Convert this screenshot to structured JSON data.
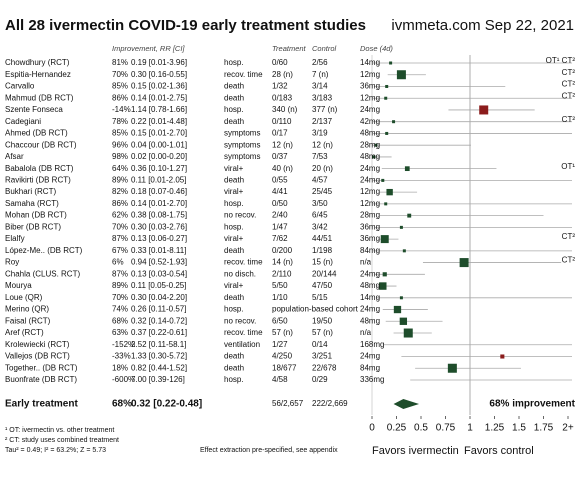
{
  "chart_data": {
    "type": "forest",
    "title": "All 28 ivermectin COVID-19 early treatment studies",
    "source": "ivmmeta.com Sep 22, 2021",
    "headers": {
      "improvement": "Improvement, RR [CI]",
      "treatment": "Treatment",
      "control": "Control",
      "dose": "Dose (4d)"
    },
    "colors": {
      "benefit": "#1e4d2b",
      "harm": "#8b1c1c",
      "good_text": "#2e8b2e",
      "bad_text": "#c0392b"
    },
    "rows": [
      {
        "study": "Chowdhury (RCT)",
        "improvement": "81%",
        "effect": "0.19 [0.01-3.96]",
        "rr": 0.19,
        "lo": 0.01,
        "hi": 3.96,
        "outcome": "hosp.",
        "treatment": "0/60",
        "control": "2/56",
        "dose": "14mg",
        "notes": "OT¹ CT²"
      },
      {
        "study": "Espitia-Hernandez",
        "improvement": "70%",
        "effect": "0.30 [0.16-0.55]",
        "rr": 0.3,
        "lo": 0.16,
        "hi": 0.55,
        "outcome": "recov. time",
        "treatment": "28 (n)",
        "control": "7 (n)",
        "dose": "12mg",
        "notes": "CT²"
      },
      {
        "study": "Carvallo",
        "improvement": "85%",
        "effect": "0.15 [0.02-1.36]",
        "rr": 0.15,
        "lo": 0.02,
        "hi": 1.36,
        "outcome": "death",
        "treatment": "1/32",
        "control": "3/14",
        "dose": "36mg",
        "notes": "CT²"
      },
      {
        "study": "Mahmud (DB RCT)",
        "improvement": "86%",
        "effect": "0.14 [0.01-2.75]",
        "rr": 0.14,
        "lo": 0.01,
        "hi": 2.75,
        "outcome": "death",
        "treatment": "0/183",
        "control": "3/183",
        "dose": "12mg",
        "notes": "CT²"
      },
      {
        "study": "Szente Fonseca",
        "improvement": "-14%",
        "effect": "1.14 [0.78-1.66]",
        "rr": 1.14,
        "lo": 0.78,
        "hi": 1.66,
        "outcome": "hosp.",
        "treatment": "340 (n)",
        "control": "377 (n)",
        "dose": "24mg"
      },
      {
        "study": "Cadegiani",
        "improvement": "78%",
        "effect": "0.22 [0.01-4.48]",
        "rr": 0.22,
        "lo": 0.01,
        "hi": 4.48,
        "outcome": "death",
        "treatment": "0/110",
        "control": "2/137",
        "dose": "42mg",
        "notes": "CT²"
      },
      {
        "study": "Ahmed (DB RCT)",
        "improvement": "85%",
        "effect": "0.15 [0.01-2.70]",
        "rr": 0.15,
        "lo": 0.01,
        "hi": 2.7,
        "outcome": "symptoms",
        "treatment": "0/17",
        "control": "3/19",
        "dose": "48mg"
      },
      {
        "study": "Chaccour (DB RCT)",
        "improvement": "96%",
        "effect": "0.04 [0.00-1.01]",
        "rr": 0.04,
        "lo": 0.0,
        "hi": 1.01,
        "outcome": "symptoms",
        "treatment": "12 (n)",
        "control": "12 (n)",
        "dose": "28mg"
      },
      {
        "study": "Afsar",
        "improvement": "98%",
        "effect": "0.02 [0.00-0.20]",
        "rr": 0.02,
        "lo": 0.0,
        "hi": 0.2,
        "outcome": "symptoms",
        "treatment": "0/37",
        "control": "7/53",
        "dose": "48mg"
      },
      {
        "study": "Babalola (DB RCT)",
        "improvement": "64%",
        "effect": "0.36 [0.10-1.27]",
        "rr": 0.36,
        "lo": 0.1,
        "hi": 1.27,
        "outcome": "viral+",
        "treatment": "40 (n)",
        "control": "20 (n)",
        "dose": "24mg",
        "notes": "OT¹"
      },
      {
        "study": "Ravikirti (DB RCT)",
        "improvement": "89%",
        "effect": "0.11 [0.01-2.05]",
        "rr": 0.11,
        "lo": 0.01,
        "hi": 2.05,
        "outcome": "death",
        "treatment": "0/55",
        "control": "4/57",
        "dose": "24mg"
      },
      {
        "study": "Bukhari (RCT)",
        "improvement": "82%",
        "effect": "0.18 [0.07-0.46]",
        "rr": 0.18,
        "lo": 0.07,
        "hi": 0.46,
        "outcome": "viral+",
        "treatment": "4/41",
        "control": "25/45",
        "dose": "12mg"
      },
      {
        "study": "Samaha (RCT)",
        "improvement": "86%",
        "effect": "0.14 [0.01-2.70]",
        "rr": 0.14,
        "lo": 0.01,
        "hi": 2.7,
        "outcome": "hosp.",
        "treatment": "0/50",
        "control": "3/50",
        "dose": "12mg"
      },
      {
        "study": "Mohan (DB RCT)",
        "improvement": "62%",
        "effect": "0.38 [0.08-1.75]",
        "rr": 0.38,
        "lo": 0.08,
        "hi": 1.75,
        "outcome": "no recov.",
        "treatment": "2/40",
        "control": "6/45",
        "dose": "28mg"
      },
      {
        "study": "Biber (DB RCT)",
        "improvement": "70%",
        "effect": "0.30 [0.03-2.76]",
        "rr": 0.3,
        "lo": 0.03,
        "hi": 2.76,
        "outcome": "hosp.",
        "treatment": "1/47",
        "control": "3/42",
        "dose": "36mg"
      },
      {
        "study": "Elalfy",
        "improvement": "87%",
        "effect": "0.13 [0.06-0.27]",
        "rr": 0.13,
        "lo": 0.06,
        "hi": 0.27,
        "outcome": "viral+",
        "treatment": "7/62",
        "control": "44/51",
        "dose": "36mg",
        "notes": "CT²"
      },
      {
        "study": "López-Me.. (DB RCT)",
        "improvement": "67%",
        "effect": "0.33 [0.01-8.11]",
        "rr": 0.33,
        "lo": 0.01,
        "hi": 8.11,
        "outcome": "death",
        "treatment": "0/200",
        "control": "1/198",
        "dose": "84mg"
      },
      {
        "study": "Roy",
        "improvement": "6%",
        "effect": "0.94 [0.52-1.93]",
        "rr": 0.94,
        "lo": 0.52,
        "hi": 1.93,
        "outcome": "recov. time",
        "treatment": "14 (n)",
        "control": "15 (n)",
        "dose": "n/a",
        "notes": "CT²"
      },
      {
        "study": "Chahla (CLUS. RCT)",
        "improvement": "87%",
        "effect": "0.13 [0.03-0.54]",
        "rr": 0.13,
        "lo": 0.03,
        "hi": 0.54,
        "outcome": "no disch.",
        "treatment": "2/110",
        "control": "20/144",
        "dose": "24mg"
      },
      {
        "study": "Mourya",
        "improvement": "89%",
        "effect": "0.11 [0.05-0.25]",
        "rr": 0.11,
        "lo": 0.05,
        "hi": 0.25,
        "outcome": "viral+",
        "treatment": "5/50",
        "control": "47/50",
        "dose": "48mg"
      },
      {
        "study": "Loue (QR)",
        "improvement": "70%",
        "effect": "0.30 [0.04-2.20]",
        "rr": 0.3,
        "lo": 0.04,
        "hi": 2.2,
        "outcome": "death",
        "treatment": "1/10",
        "control": "5/15",
        "dose": "14mg"
      },
      {
        "study": "Merino (QR)",
        "improvement": "74%",
        "effect": "0.26 [0.11-0.57]",
        "rr": 0.26,
        "lo": 0.11,
        "hi": 0.57,
        "outcome": "hosp.",
        "treatment": "population-based cohort",
        "dose": "24mg"
      },
      {
        "study": "Faisal (RCT)",
        "improvement": "68%",
        "effect": "0.32 [0.14-0.72]",
        "rr": 0.32,
        "lo": 0.14,
        "hi": 0.72,
        "outcome": "no recov.",
        "treatment": "6/50",
        "control": "19/50",
        "dose": "48mg"
      },
      {
        "study": "Aref (RCT)",
        "improvement": "63%",
        "effect": "0.37 [0.22-0.61]",
        "rr": 0.37,
        "lo": 0.22,
        "hi": 0.61,
        "outcome": "recov. time",
        "treatment": "57 (n)",
        "control": "57 (n)",
        "dose": "n/a"
      },
      {
        "study": "Krolewiecki (RCT)",
        "improvement": "-152%",
        "effect": "2.52 [0.11-58.1]",
        "rr": 2.52,
        "lo": 0.11,
        "hi": 58.1,
        "outcome": "ventilation",
        "treatment": "1/27",
        "control": "0/14",
        "dose": "168mg"
      },
      {
        "study": "Vallejos (DB RCT)",
        "improvement": "-33%",
        "effect": "1.33 [0.30-5.72]",
        "rr": 1.33,
        "lo": 0.3,
        "hi": 5.72,
        "outcome": "death",
        "treatment": "4/250",
        "control": "3/251",
        "dose": "24mg"
      },
      {
        "study": "Together.. (DB RCT)",
        "improvement": "18%",
        "effect": "0.82 [0.44-1.52]",
        "rr": 0.82,
        "lo": 0.44,
        "hi": 1.52,
        "outcome": "death",
        "treatment": "18/677",
        "control": "22/678",
        "dose": "84mg"
      },
      {
        "study": "Buonfrate (DB RCT)",
        "improvement": "-600%",
        "effect": "7.00 [0.39-126]",
        "rr": 7.0,
        "lo": 0.39,
        "hi": 126,
        "outcome": "hosp.",
        "treatment": "4/58",
        "control": "0/29",
        "dose": "336mg"
      }
    ],
    "summary": {
      "label": "Early treatment",
      "improvement": "68%",
      "effect": "0.32 [0.22-0.48]",
      "rr": 0.32,
      "lo": 0.22,
      "hi": 0.48,
      "treatment": "56/2,657",
      "control": "222/2,669",
      "text": "68% improvement"
    },
    "xlim": [
      0,
      2
    ],
    "xticks": [
      0,
      0.25,
      0.5,
      0.75,
      1,
      1.25,
      1.5,
      1.75,
      {
        "value": 2,
        "label": "2+"
      }
    ],
    "xlabels": {
      "left": "Favors ivermectin",
      "right": "Favors control"
    },
    "footnotes": [
      "¹ OT: ivermectin vs. other treatment",
      "² CT: study uses combined treatment",
      "Tau² = 0.49; I² = 63.2%; Z = 5.73"
    ],
    "method_note": "Effect extraction pre-specified, see appendix"
  }
}
